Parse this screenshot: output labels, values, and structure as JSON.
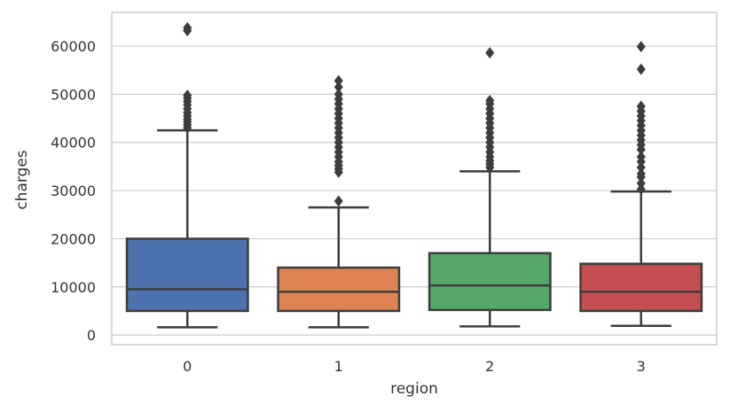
{
  "chart_data": {
    "type": "box",
    "title": "",
    "xlabel": "region",
    "ylabel": "charges",
    "categories": [
      "0",
      "1",
      "2",
      "3"
    ],
    "ylim": [
      -2000,
      67000
    ],
    "yticks": [
      0,
      10000,
      20000,
      30000,
      40000,
      50000,
      60000
    ],
    "ytick_labels": [
      "0",
      "10000",
      "20000",
      "30000",
      "40000",
      "50000",
      "60000"
    ],
    "grid": true,
    "colors": [
      "#4c72b0",
      "#dd8452",
      "#55a868",
      "#c44e52"
    ],
    "series": [
      {
        "category": "0",
        "whisker_low": 1600,
        "q1": 5000,
        "median": 9500,
        "q3": 20000,
        "whisker_high": 42500,
        "outliers": [
          43000,
          43600,
          44200,
          44800,
          45500,
          46200,
          47000,
          47800,
          48500,
          49200,
          49800,
          63200,
          63800
        ]
      },
      {
        "category": "1",
        "whisker_low": 1600,
        "q1": 5000,
        "median": 9000,
        "q3": 14000,
        "whisker_high": 26500,
        "outliers": [
          27800,
          33800,
          34500,
          35200,
          36000,
          37000,
          38000,
          39000,
          40000,
          41000,
          42000,
          43000,
          44000,
          45000,
          46000,
          47000,
          48000,
          49000,
          50000,
          51500,
          52800
        ]
      },
      {
        "category": "2",
        "whisker_low": 1800,
        "q1": 5200,
        "median": 10300,
        "q3": 17000,
        "whisker_high": 34000,
        "outliers": [
          34800,
          35500,
          36200,
          37000,
          38000,
          39000,
          40000,
          41000,
          42000,
          43000,
          44000,
          45000,
          46000,
          47000,
          48000,
          48700,
          58600
        ]
      },
      {
        "category": "3",
        "whisker_low": 1900,
        "q1": 5000,
        "median": 9000,
        "q3": 14800,
        "whisker_high": 29800,
        "outliers": [
          30300,
          31500,
          32800,
          33500,
          34800,
          36000,
          37000,
          38500,
          39500,
          40500,
          41500,
          42500,
          43500,
          44500,
          45500,
          46500,
          47500,
          55200,
          59900
        ]
      }
    ]
  }
}
